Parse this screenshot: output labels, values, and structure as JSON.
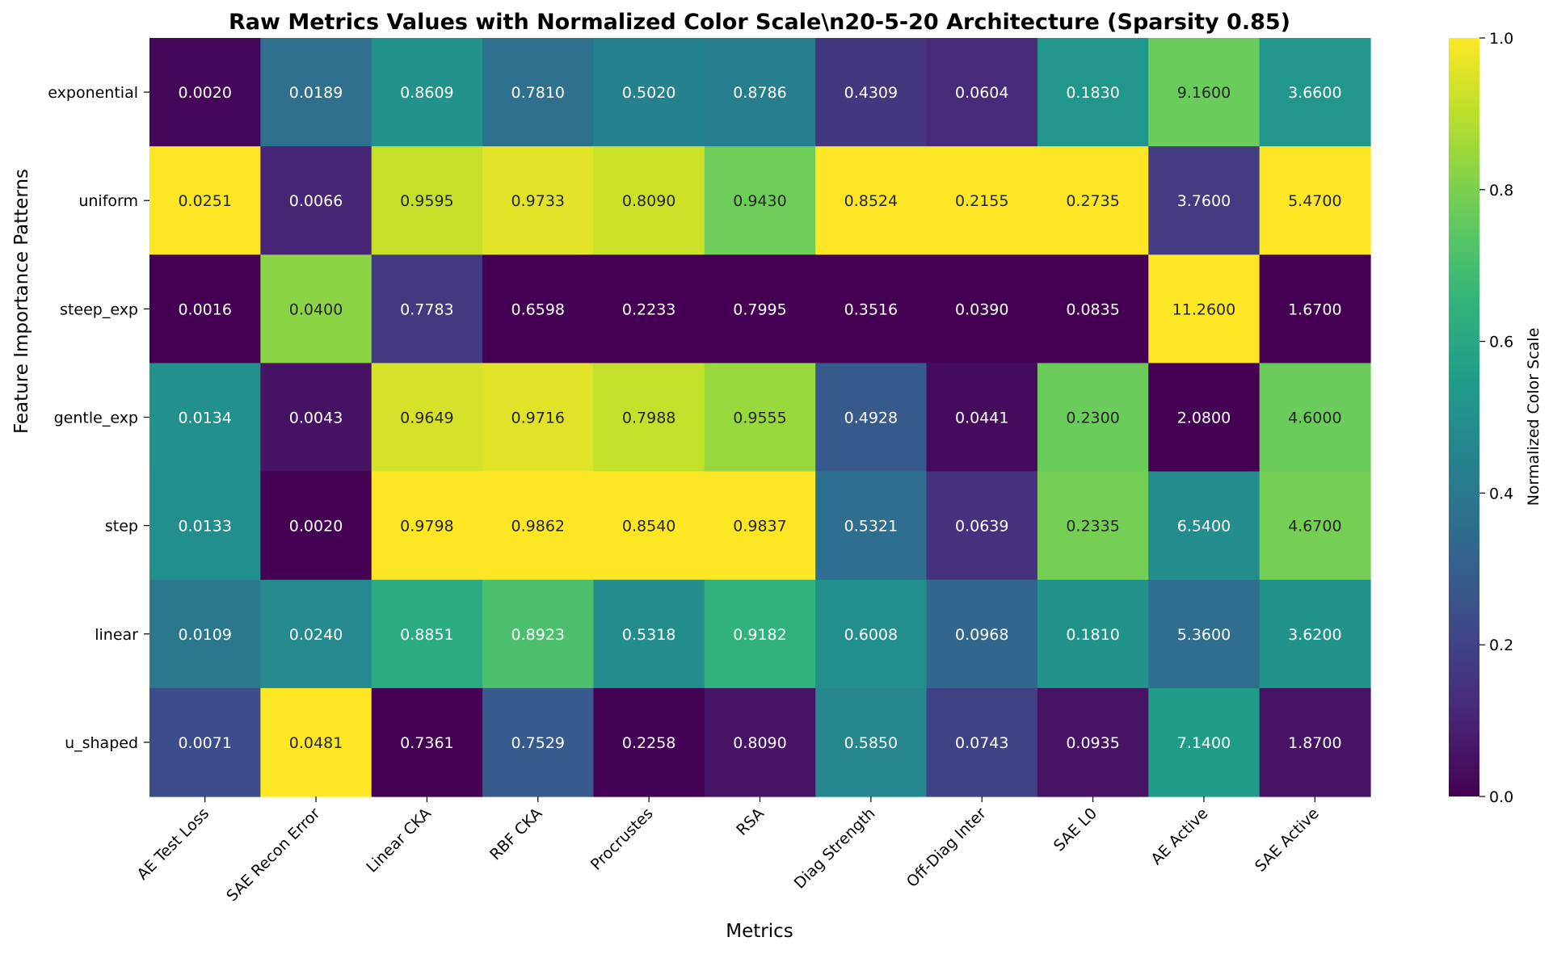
{
  "chart_data": {
    "type": "heatmap",
    "title": "Raw Metrics Values with Normalized Color Scale\\n20-5-20 Architecture (Sparsity 0.85)",
    "xlabel": "Metrics",
    "ylabel": "Feature Importance Patterns",
    "colorbar_label": "Normalized Color Scale",
    "colormap": "viridis",
    "colorbar_range": [
      0.0,
      1.0
    ],
    "colorbar_ticks": [
      "0.0",
      "0.2",
      "0.4",
      "0.6",
      "0.8",
      "1.0"
    ],
    "columns": [
      "AE Test Loss",
      "SAE Recon Error",
      "Linear CKA",
      "RBF CKA",
      "Procrustes",
      "RSA",
      "Diag Strength",
      "Off-Diag Inter",
      "SAE L0",
      "AE Active",
      "SAE Active"
    ],
    "rows": [
      "exponential",
      "uniform",
      "steep_exp",
      "gentle_exp",
      "step",
      "linear",
      "u_shaped"
    ],
    "values": [
      [
        "0.0020",
        "0.0189",
        "0.8609",
        "0.7810",
        "0.5020",
        "0.8786",
        "0.4309",
        "0.0604",
        "0.1830",
        "9.1600",
        "3.6600"
      ],
      [
        "0.0251",
        "0.0066",
        "0.9595",
        "0.9733",
        "0.8090",
        "0.9430",
        "0.8524",
        "0.2155",
        "0.2735",
        "3.7600",
        "5.4700"
      ],
      [
        "0.0016",
        "0.0400",
        "0.7783",
        "0.6598",
        "0.2233",
        "0.7995",
        "0.3516",
        "0.0390",
        "0.0835",
        "11.2600",
        "1.6700"
      ],
      [
        "0.0134",
        "0.0043",
        "0.9649",
        "0.9716",
        "0.7988",
        "0.9555",
        "0.4928",
        "0.0441",
        "0.2300",
        "2.0800",
        "4.6000"
      ],
      [
        "0.0133",
        "0.0020",
        "0.9798",
        "0.9862",
        "0.8540",
        "0.9837",
        "0.5321",
        "0.0639",
        "0.2335",
        "6.5400",
        "4.6700"
      ],
      [
        "0.0109",
        "0.0240",
        "0.8851",
        "0.8923",
        "0.5318",
        "0.9182",
        "0.6008",
        "0.0968",
        "0.1810",
        "5.3600",
        "3.6200"
      ],
      [
        "0.0071",
        "0.0481",
        "0.7361",
        "0.7529",
        "0.2258",
        "0.8090",
        "0.5850",
        "0.0743",
        "0.0935",
        "7.1400",
        "1.8700"
      ]
    ]
  }
}
